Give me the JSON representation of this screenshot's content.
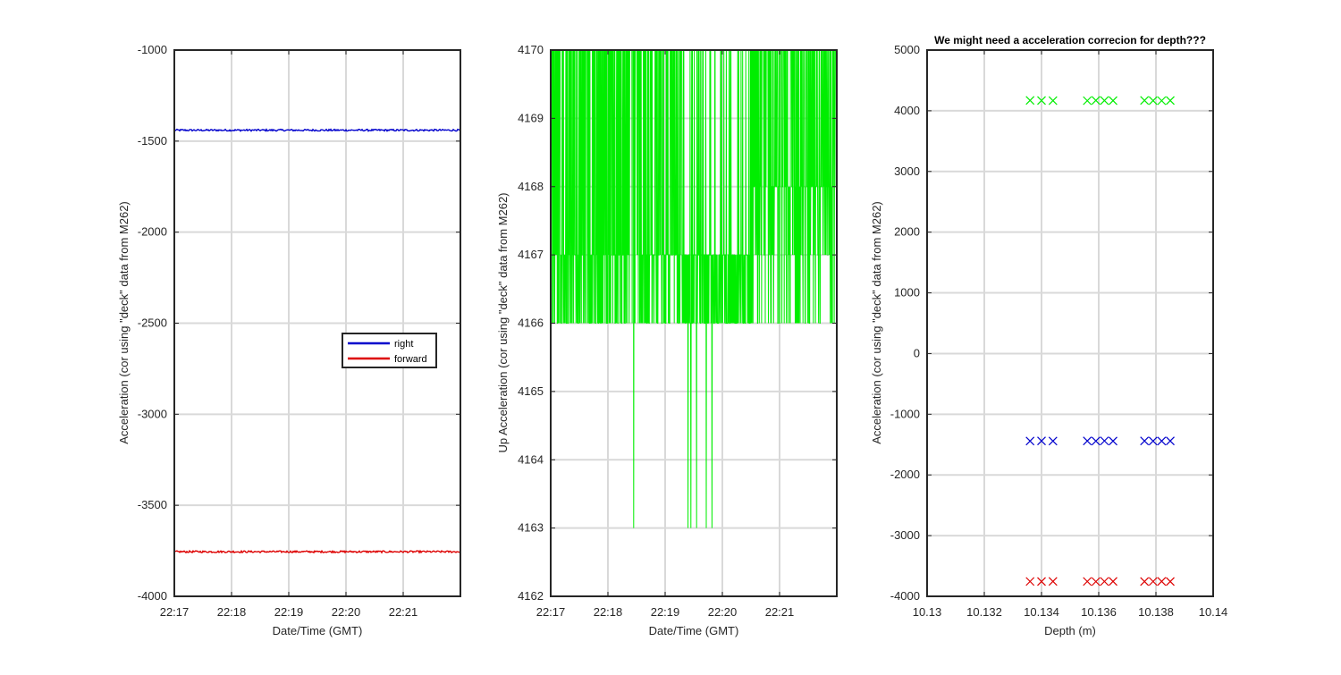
{
  "chart_data": [
    {
      "type": "line",
      "title": "",
      "xlabel": "Date/Time (GMT)",
      "ylabel": "Acceleration (cor using \"deck\" data from M262)",
      "x_ticks": [
        "22:17",
        "22:18",
        "22:19",
        "22:20",
        "22:21"
      ],
      "xlim": [
        "22:17",
        "22:22"
      ],
      "ylim": [
        -4000,
        -1000
      ],
      "y_ticks": [
        -1000,
        -1500,
        -2000,
        -2500,
        -3000,
        -3500,
        -4000
      ],
      "grid": true,
      "legend": {
        "placement": "center-right",
        "entries": [
          "right",
          "forward"
        ]
      },
      "series": [
        {
          "name": "right",
          "color": "#0000cc",
          "approx_value": -1440
        },
        {
          "name": "forward",
          "color": "#dd0000",
          "approx_value": -3755
        }
      ]
    },
    {
      "type": "line",
      "title": "",
      "xlabel": "Date/Time (GMT)",
      "ylabel": "Up Acceleration (cor using \"deck\" data from M262)",
      "x_ticks": [
        "22:17",
        "22:18",
        "22:19",
        "22:20",
        "22:21"
      ],
      "xlim": [
        "22:17",
        "22:22"
      ],
      "ylim": [
        4162,
        4170
      ],
      "y_ticks": [
        4170,
        4169,
        4168,
        4167,
        4166,
        4165,
        4164,
        4163,
        4162
      ],
      "grid": true,
      "series": [
        {
          "color": "#00ee00",
          "levels_observed": [
            4163,
            4166,
            4167,
            4168,
            4170
          ],
          "dips_to_4163_at_minutes": [
            1.45,
            2.4,
            2.45,
            2.55,
            2.72,
            2.82
          ]
        }
      ]
    },
    {
      "type": "scatter",
      "title": "We might need a acceleration correcion for depth???",
      "xlabel": "Depth (m)",
      "ylabel": "Acceleration (cor using \"deck\" data from M262)",
      "x_ticks": [
        "10.13",
        "10.132",
        "10.134",
        "10.136",
        "10.138",
        "10.14"
      ],
      "xlim": [
        10.13,
        10.14
      ],
      "ylim": [
        -4000,
        5000
      ],
      "y_ticks": [
        5000,
        4000,
        3000,
        2000,
        1000,
        0,
        -1000,
        -2000,
        -3000,
        -4000
      ],
      "grid": true,
      "marker": "x",
      "series": [
        {
          "color": "#00ee00",
          "x": [
            10.1336,
            10.134,
            10.1344,
            10.1356,
            10.1359,
            10.1362,
            10.1365,
            10.1376,
            10.1379,
            10.1382,
            10.1385
          ],
          "y": [
            4170,
            4168,
            4167,
            4166,
            4170,
            4168,
            4167,
            4170,
            4167,
            4166,
            4168
          ]
        },
        {
          "color": "#0000cc",
          "x": [
            10.1336,
            10.134,
            10.1344,
            10.1356,
            10.1359,
            10.1362,
            10.1365,
            10.1376,
            10.1379,
            10.1382,
            10.1385
          ],
          "y": [
            -1442,
            -1440,
            -1441,
            -1440,
            -1442,
            -1439,
            -1441,
            -1440,
            -1441,
            -1442,
            -1440
          ]
        },
        {
          "color": "#dd0000",
          "x": [
            10.1336,
            10.134,
            10.1344,
            10.1356,
            10.1359,
            10.1362,
            10.1365,
            10.1376,
            10.1379,
            10.1382,
            10.1385
          ],
          "y": [
            -3755,
            -3756,
            -3754,
            -3755,
            -3757,
            -3755,
            -3754,
            -3756,
            -3755,
            -3754,
            -3756
          ]
        }
      ]
    }
  ]
}
